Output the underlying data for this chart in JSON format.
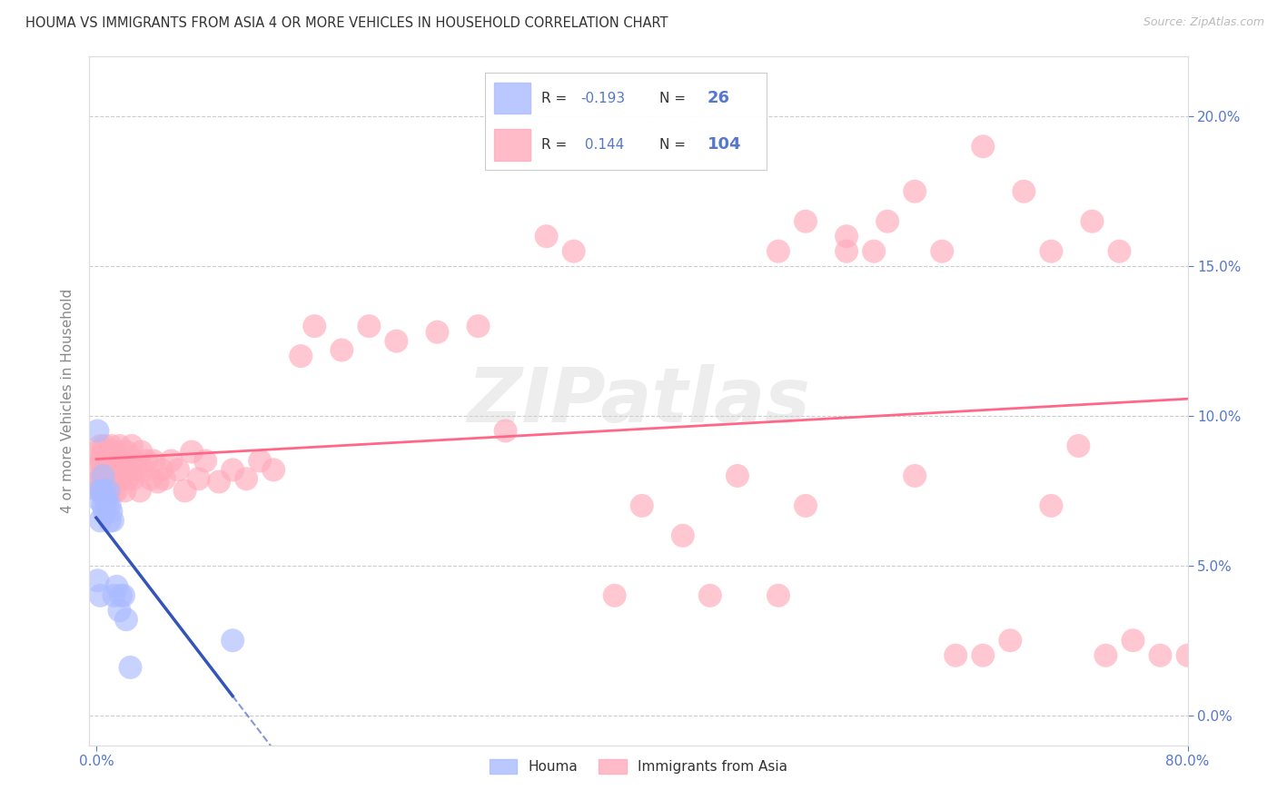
{
  "title": "HOUMA VS IMMIGRANTS FROM ASIA 4 OR MORE VEHICLES IN HOUSEHOLD CORRELATION CHART",
  "source": "Source: ZipAtlas.com",
  "ylabel": "4 or more Vehicles in Household",
  "houma_label": "Houma",
  "asia_label": "Immigrants from Asia",
  "houma_R": -0.193,
  "houma_N": 26,
  "asia_R": 0.144,
  "asia_N": 104,
  "xlim": [
    -0.005,
    0.8
  ],
  "ylim": [
    -0.01,
    0.22
  ],
  "yticks": [
    0.0,
    0.05,
    0.1,
    0.15,
    0.2
  ],
  "ytick_labels": [
    "0.0%",
    "5.0%",
    "10.0%",
    "15.0%",
    "20.0%"
  ],
  "title_color": "#333333",
  "source_color": "#aaaaaa",
  "tick_color": "#5577cc",
  "grid_color": "#cccccc",
  "houma_color": "#aabbff",
  "asia_color": "#ffaabb",
  "houma_line_color": "#3355bb",
  "asia_line_color": "#ff6688",
  "houma_x": [
    0.001,
    0.001,
    0.002,
    0.002,
    0.003,
    0.003,
    0.004,
    0.005,
    0.005,
    0.006,
    0.006,
    0.007,
    0.008,
    0.009,
    0.01,
    0.01,
    0.011,
    0.012,
    0.013,
    0.015,
    0.017,
    0.018,
    0.02,
    0.022,
    0.025,
    0.1
  ],
  "houma_y": [
    0.095,
    0.045,
    0.075,
    0.072,
    0.065,
    0.04,
    0.075,
    0.08,
    0.07,
    0.075,
    0.068,
    0.072,
    0.07,
    0.075,
    0.065,
    0.07,
    0.068,
    0.065,
    0.04,
    0.043,
    0.035,
    0.04,
    0.04,
    0.032,
    0.016,
    0.025
  ],
  "asia_x": [
    0.001,
    0.001,
    0.001,
    0.002,
    0.002,
    0.003,
    0.003,
    0.004,
    0.004,
    0.005,
    0.005,
    0.006,
    0.006,
    0.007,
    0.007,
    0.008,
    0.008,
    0.009,
    0.009,
    0.01,
    0.01,
    0.011,
    0.011,
    0.012,
    0.012,
    0.013,
    0.013,
    0.014,
    0.014,
    0.015,
    0.015,
    0.016,
    0.017,
    0.018,
    0.019,
    0.02,
    0.021,
    0.022,
    0.023,
    0.025,
    0.026,
    0.027,
    0.028,
    0.03,
    0.032,
    0.033,
    0.035,
    0.037,
    0.04,
    0.042,
    0.045,
    0.048,
    0.05,
    0.055,
    0.06,
    0.065,
    0.07,
    0.075,
    0.08,
    0.09,
    0.1,
    0.11,
    0.12,
    0.13,
    0.15,
    0.16,
    0.18,
    0.2,
    0.22,
    0.25,
    0.28,
    0.3,
    0.33,
    0.35,
    0.38,
    0.4,
    0.43,
    0.45,
    0.47,
    0.5,
    0.52,
    0.55,
    0.57,
    0.6,
    0.63,
    0.65,
    0.67,
    0.7,
    0.72,
    0.74,
    0.76,
    0.78,
    0.8,
    0.6,
    0.62,
    0.65,
    0.68,
    0.7,
    0.73,
    0.75,
    0.5,
    0.52,
    0.55,
    0.58
  ],
  "asia_y": [
    0.088,
    0.078,
    0.082,
    0.085,
    0.075,
    0.09,
    0.08,
    0.078,
    0.085,
    0.088,
    0.075,
    0.082,
    0.09,
    0.079,
    0.085,
    0.082,
    0.075,
    0.088,
    0.079,
    0.085,
    0.075,
    0.082,
    0.09,
    0.079,
    0.085,
    0.082,
    0.075,
    0.088,
    0.079,
    0.085,
    0.075,
    0.082,
    0.09,
    0.079,
    0.085,
    0.082,
    0.075,
    0.088,
    0.079,
    0.082,
    0.09,
    0.079,
    0.085,
    0.082,
    0.075,
    0.088,
    0.082,
    0.085,
    0.079,
    0.085,
    0.078,
    0.082,
    0.079,
    0.085,
    0.082,
    0.075,
    0.088,
    0.079,
    0.085,
    0.078,
    0.082,
    0.079,
    0.085,
    0.082,
    0.12,
    0.13,
    0.122,
    0.13,
    0.125,
    0.128,
    0.13,
    0.095,
    0.16,
    0.155,
    0.04,
    0.07,
    0.06,
    0.04,
    0.08,
    0.04,
    0.07,
    0.16,
    0.155,
    0.08,
    0.02,
    0.02,
    0.025,
    0.07,
    0.09,
    0.02,
    0.025,
    0.02,
    0.02,
    0.175,
    0.155,
    0.19,
    0.175,
    0.155,
    0.165,
    0.155,
    0.155,
    0.165,
    0.155,
    0.165
  ]
}
